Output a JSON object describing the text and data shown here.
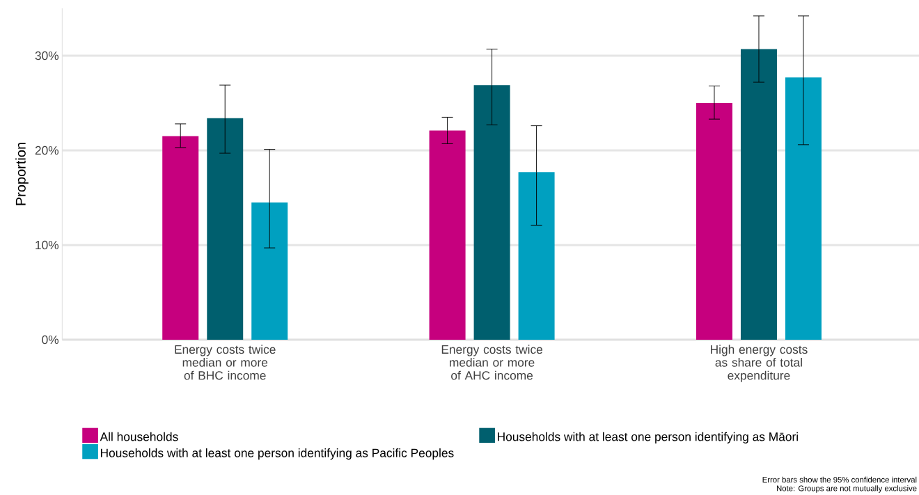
{
  "chart_data": {
    "type": "bar",
    "ylabel": "Proportion",
    "categories": [
      "Energy costs twice median or more of BHC income",
      "Energy costs twice median or more of AHC income",
      "High energy costs as share of total expenditure"
    ],
    "series": [
      {
        "name": "All households",
        "color": "#c6007e",
        "values": [
          21.5,
          22.1,
          25.0
        ],
        "errors": [
          [
            20.3,
            22.8
          ],
          [
            20.7,
            23.5
          ],
          [
            23.3,
            26.8
          ]
        ]
      },
      {
        "name": "Households with at least one person identifying as Māori",
        "color": "#005f6e",
        "values": [
          23.4,
          26.9,
          30.7
        ],
        "errors": [
          [
            19.7,
            26.9
          ],
          [
            22.7,
            30.7
          ],
          [
            27.2,
            34.2
          ]
        ]
      },
      {
        "name": "Households with at least one person identifying as Pacific Peoples",
        "color": "#00a0c0",
        "values": [
          14.5,
          17.7,
          27.7
        ],
        "errors": [
          [
            9.7,
            20.1
          ],
          [
            12.1,
            22.6
          ],
          [
            20.6,
            34.2
          ]
        ]
      }
    ],
    "ylim": [
      0,
      35
    ],
    "yticks": [
      {
        "value": 0,
        "label": "0%"
      },
      {
        "value": 10,
        "label": "10%"
      },
      {
        "value": 20,
        "label": "20%"
      },
      {
        "value": 30,
        "label": "30%"
      }
    ],
    "grid": "y",
    "legend": "bottom",
    "annotations": [
      "Error bars show the 95% confidence interval",
      "Note: Groups are not mutually exclusive"
    ]
  }
}
